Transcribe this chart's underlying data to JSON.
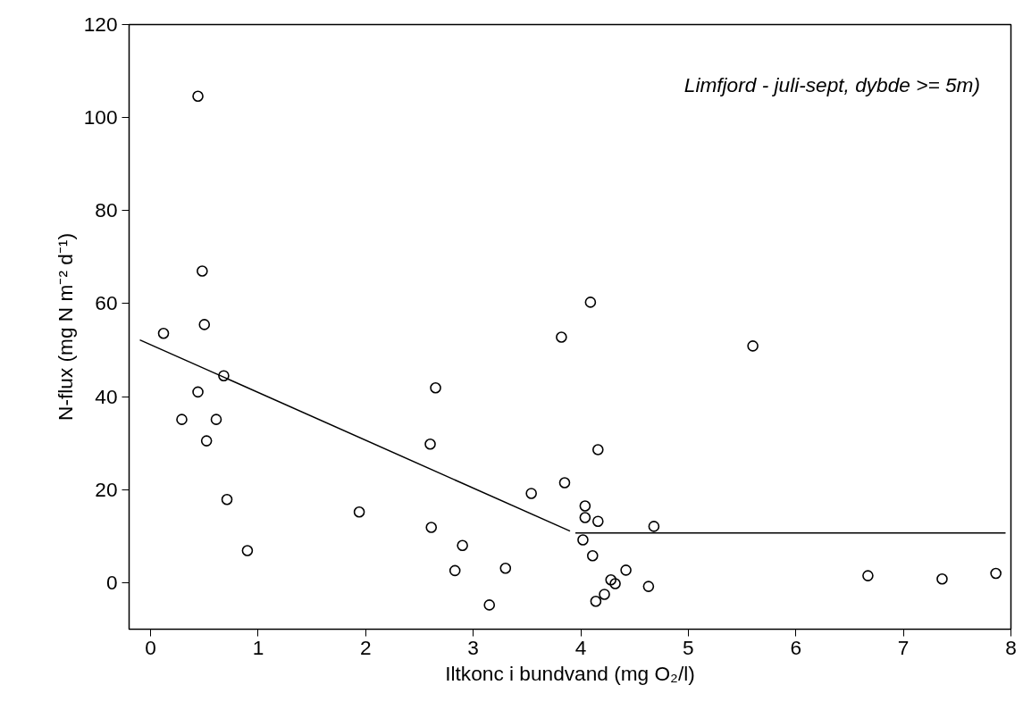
{
  "chart_data": {
    "type": "scatter",
    "xlabel": "Iltkonc i bundvand (mg O₂/l)",
    "ylabel": "N-flux (mg N m⁻² d⁻¹)",
    "annotations": [
      "Limfjord - juli-sept, dybde >= 5m)"
    ],
    "xlim": [
      -0.2,
      8
    ],
    "ylim": [
      -10,
      120
    ],
    "xticks": [
      0,
      1,
      2,
      3,
      4,
      5,
      6,
      7,
      8
    ],
    "yticks": [
      0,
      20,
      40,
      60,
      80,
      100,
      120
    ],
    "grid": false,
    "marker": "circle",
    "series": [
      {
        "color": "#000000",
        "x": [
          0.12,
          0.44,
          0.48,
          0.5,
          0.44,
          0.68,
          0.29,
          0.61,
          0.52,
          0.71,
          0.9,
          1.94,
          2.6,
          2.65,
          2.61,
          2.9,
          2.83,
          3.15,
          3.3,
          3.54,
          3.82,
          3.85,
          4.02,
          4.04,
          4.04,
          4.09,
          4.11,
          4.14,
          4.16,
          4.16,
          4.22,
          4.28,
          4.32,
          4.42,
          4.63,
          4.68,
          5.6,
          6.67,
          7.36,
          7.86
        ],
        "values": [
          53.6,
          104.6,
          67,
          55.5,
          41,
          44.5,
          35.1,
          35.1,
          30.5,
          17.9,
          6.9,
          15.2,
          29.8,
          41.9,
          11.9,
          8,
          2.6,
          -4.8,
          3.1,
          19.2,
          52.8,
          21.5,
          9.2,
          16.5,
          14,
          60.3,
          5.8,
          -4,
          28.6,
          13.2,
          -2.5,
          0.6,
          -0.2,
          2.7,
          -0.8,
          12.1,
          50.9,
          1.5,
          0.8,
          2
        ]
      },
      {
        "type": "line",
        "color": "#000000",
        "marker": "none",
        "line_style": "solid",
        "x": [
          -0.1,
          3.9
        ],
        "values": [
          52.2,
          11.1
        ]
      },
      {
        "type": "line",
        "color": "#000000",
        "marker": "none",
        "line_style": "solid",
        "x": [
          3.95,
          7.95
        ],
        "values": [
          10.7,
          10.7
        ]
      }
    ]
  }
}
